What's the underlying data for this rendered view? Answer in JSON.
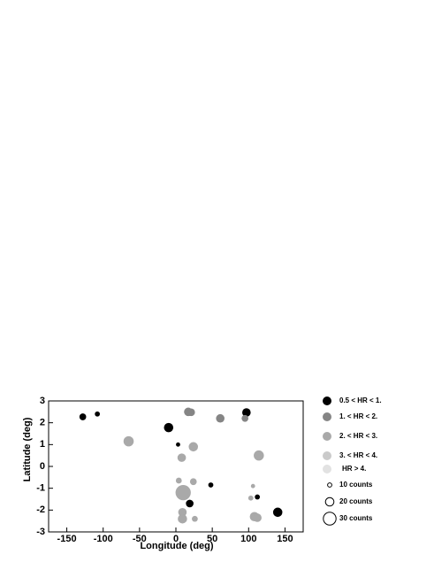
{
  "chart_data": {
    "type": "scatter",
    "x_label": "Longitude (deg)",
    "y_label": "Latitude (deg)",
    "xlim": [
      -175,
      175
    ],
    "ylim": [
      -3,
      3
    ],
    "xticks": [
      -150,
      -100,
      -50,
      0,
      50,
      100,
      150
    ],
    "yticks": [
      -3,
      -2,
      -1,
      0,
      1,
      2,
      3
    ],
    "size_legend": [
      {
        "value": 10,
        "label": "10 counts"
      },
      {
        "value": 20,
        "label": "20 counts"
      },
      {
        "value": 30,
        "label": "30 counts"
      }
    ],
    "series": [
      {
        "name": "0.5 < HR < 1.",
        "color": "#000000",
        "x": [
          -128,
          -108,
          -10,
          97,
          3,
          48,
          19,
          112,
          140
        ],
        "y": [
          2.27,
          2.4,
          1.78,
          2.47,
          1.0,
          -0.85,
          -1.7,
          -1.4,
          -2.1
        ],
        "counts": [
          16,
          12,
          22,
          20,
          10,
          12,
          18,
          12,
          22
        ]
      },
      {
        "name": "1.  < HR < 2.",
        "color": "#858585",
        "x": [
          95,
          17,
          61,
          21
        ],
        "y": [
          2.2,
          2.5,
          2.2,
          2.48
        ],
        "counts": [
          16,
          20,
          20,
          18
        ]
      },
      {
        "name": "2.  < HR < 3.",
        "color": "#a9a9a9",
        "x": [
          -65,
          24,
          8,
          114,
          4,
          24,
          10,
          9,
          9,
          26,
          106,
          103,
          108,
          112
        ],
        "y": [
          1.15,
          0.9,
          0.4,
          0.5,
          -0.65,
          -0.7,
          -1.2,
          -2.1,
          -2.4,
          -2.4,
          -0.9,
          -1.45,
          -2.3,
          -2.35
        ],
        "counts": [
          24,
          22,
          20,
          24,
          14,
          16,
          36,
          20,
          22,
          14,
          10,
          12,
          22,
          20
        ]
      },
      {
        "name": "3.  < HR < 4.",
        "color": "#cacaca",
        "x": [],
        "y": [],
        "counts": []
      },
      {
        "name": "HR > 4.",
        "color": "#e2e2e2",
        "x": [],
        "y": [],
        "counts": []
      }
    ]
  }
}
